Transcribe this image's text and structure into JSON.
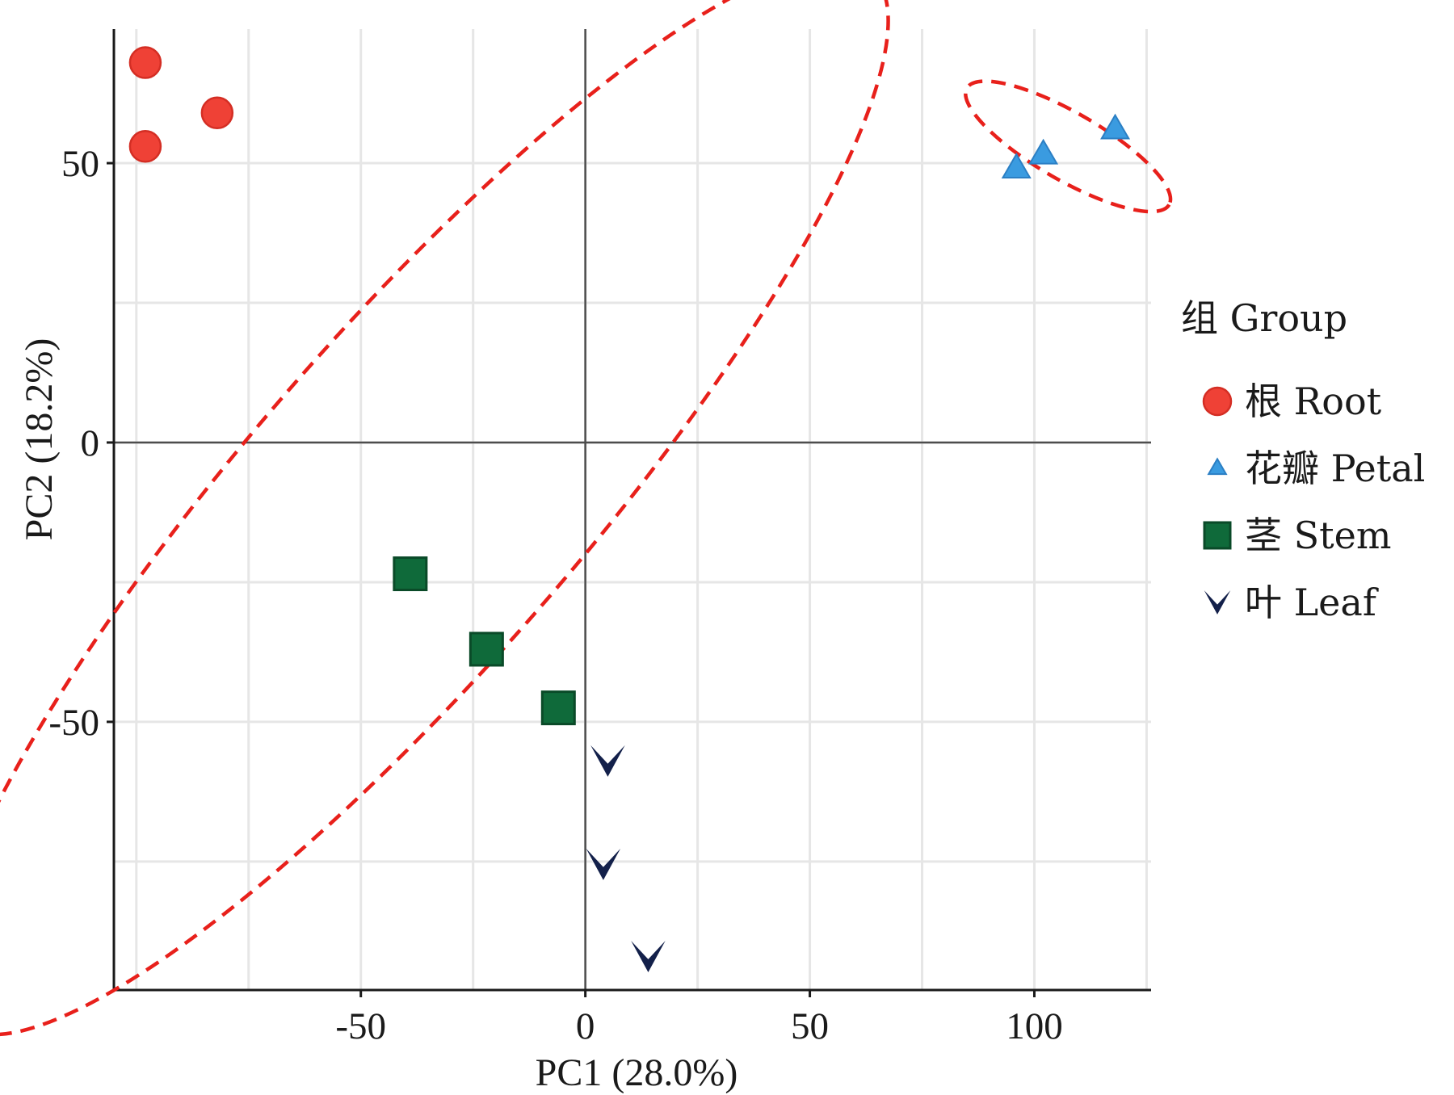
{
  "chart_data": {
    "type": "scatter",
    "xlabel": "PC1 (28.0%)",
    "ylabel": "PC2 (18.2%)",
    "xlim": [
      -105,
      126
    ],
    "ylim": [
      -98,
      74
    ],
    "xticks": [
      -50,
      0,
      50,
      100
    ],
    "yticks": [
      -50,
      0,
      50
    ],
    "grid": true,
    "zero_lines": true,
    "legend_title": "组 Group",
    "legend_position": "right",
    "series": [
      {
        "name": "根 Root",
        "marker": "circle",
        "color": "#ef4136",
        "points": [
          [
            -98,
            68
          ],
          [
            -98,
            53
          ],
          [
            -82,
            59
          ]
        ]
      },
      {
        "name": "花瓣 Petal",
        "marker": "triangle",
        "color": "#3a9be0",
        "points": [
          [
            96,
            49
          ],
          [
            102,
            51.5
          ],
          [
            118,
            56
          ]
        ]
      },
      {
        "name": "茎 Stem",
        "marker": "square",
        "color": "#0f6a3a",
        "points": [
          [
            -39,
            -23.5
          ],
          [
            -22,
            -37
          ],
          [
            -6,
            -47.5
          ]
        ]
      },
      {
        "name": "叶 Leaf",
        "marker": "chevron",
        "color": "#13204a",
        "points": [
          [
            5,
            -57
          ],
          [
            4,
            -75.5
          ],
          [
            14,
            -92
          ]
        ]
      }
    ],
    "ellipses": [
      {
        "color": "#e8201b",
        "center": [
          -38,
          -10
        ],
        "semi_axes": [
          155,
          37
        ],
        "angle_deg": -49
      },
      {
        "color": "#e8201b",
        "center": [
          107.5,
          53
        ],
        "semi_axes": [
          26,
          7.5
        ],
        "angle_deg": 30
      }
    ]
  }
}
